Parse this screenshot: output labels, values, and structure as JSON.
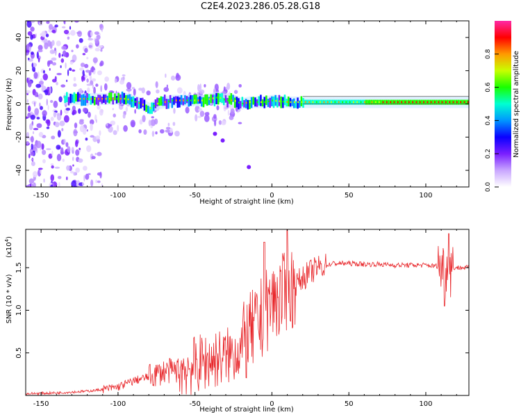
{
  "title": "C2E4.2023.286.05.28.G18",
  "colors": {
    "snr_line": "#e8262a",
    "colormap": [
      "#ffffff",
      "#c9a6ff",
      "#7a1fff",
      "#0a00ff",
      "#0096ff",
      "#00ffd2",
      "#19ff00",
      "#c8ff00",
      "#ff9a00",
      "#ff0000",
      "#ff2aa5"
    ]
  },
  "chart_data": [
    {
      "type": "heatmap",
      "xlabel": "Height of straight line (km)",
      "ylabel": "Frequency (Hz)",
      "xlim": [
        -160,
        128
      ],
      "ylim": [
        -50,
        50
      ],
      "x_ticks": [
        -150,
        -100,
        -50,
        0,
        50,
        100
      ],
      "y_ticks": [
        -40,
        -20,
        0,
        20,
        40
      ],
      "colorbar": {
        "label": "Normalized spectral amplitude",
        "range": [
          0,
          1
        ],
        "ticks": [
          "0.0",
          "0.2",
          "0.4",
          "0.6",
          "0.8"
        ]
      },
      "ridge": {
        "description_free_points": true,
        "x": [
          -135,
          -120,
          -105,
          -95,
          -85,
          -80,
          -75,
          -65,
          -55,
          -45,
          -35,
          -30,
          -25,
          -20,
          -15,
          -5,
          0,
          10,
          20,
          40,
          60,
          80,
          100,
          120,
          128
        ],
        "y": [
          3,
          3,
          3,
          3,
          0,
          -3,
          0,
          2,
          2,
          2,
          4,
          2,
          2,
          0,
          1,
          1,
          2,
          1,
          1,
          1,
          1,
          1,
          1,
          1,
          1
        ]
      },
      "scatter_blobs": {
        "x_range": [
          -160,
          -20
        ],
        "secondary_trace": [
          [
            -37,
            -18
          ],
          [
            -32,
            -22
          ],
          [
            -15,
            -38
          ]
        ]
      }
    },
    {
      "type": "line",
      "xlabel": "Height of straight line (km)",
      "ylabel": "SNR (10 * v/v)",
      "ylabel_multiplier": "(x10",
      "ylabel_multiplier_exp": "4",
      "ylabel_multiplier_close": ")",
      "xlim": [
        -160,
        128
      ],
      "ylim": [
        0,
        1.95
      ],
      "x_ticks": [
        -150,
        -100,
        -50,
        0,
        50,
        100
      ],
      "y_ticks": [
        "0.5",
        "1.0",
        "1.5"
      ],
      "series": [
        {
          "x": [
            -160,
            -140,
            -120,
            -110,
            -100,
            -90,
            -80,
            -70,
            -60,
            -50,
            -40,
            -30,
            -20,
            -15,
            -10,
            -5,
            0,
            5,
            10,
            15,
            20,
            25,
            30,
            40,
            50,
            60,
            70,
            80,
            90,
            100,
            105,
            110,
            113,
            116,
            120,
            128
          ],
          "y": [
            0.02,
            0.03,
            0.05,
            0.07,
            0.1,
            0.17,
            0.22,
            0.28,
            0.3,
            0.35,
            0.42,
            0.45,
            0.55,
            0.7,
            0.8,
            0.95,
            1.1,
            1.15,
            1.2,
            1.3,
            1.38,
            1.45,
            1.5,
            1.55,
            1.55,
            1.54,
            1.54,
            1.53,
            1.53,
            1.53,
            1.52,
            1.52,
            1.45,
            1.5,
            1.5,
            1.5
          ]
        }
      ]
    }
  ]
}
